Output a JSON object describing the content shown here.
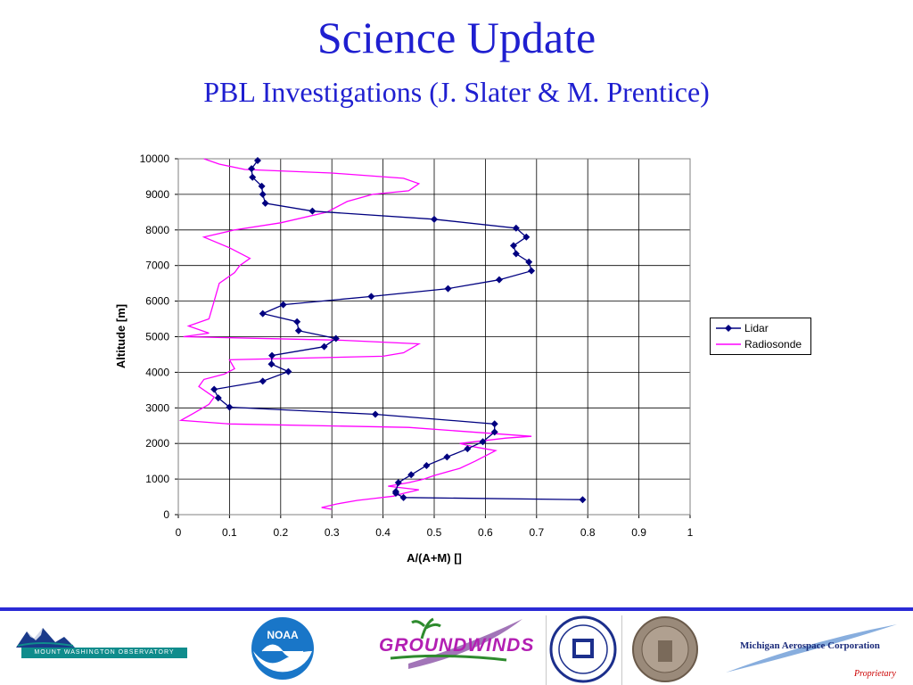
{
  "slide": {
    "title": "Science Update",
    "subtitle": "PBL Investigations (J. Slater & M. Prentice)"
  },
  "footer": {
    "mwo_text": "MOUNT WASHINGTON OBSERVATORY",
    "noaa_text": "NOAA",
    "groundwinds_text": "GROUNDWINDS",
    "mac_text": "Michigan Aerospace Corporation",
    "proprietary_text": "Proprietary",
    "accent_color": "#2b2bd6"
  },
  "chart_data": {
    "type": "line",
    "title": "",
    "xlabel": "A/(A+M) []",
    "ylabel": "Altitude [m]",
    "xlim": [
      0,
      1
    ],
    "ylim": [
      0,
      10000
    ],
    "x_ticks": [
      "0",
      "0.1",
      "0.2",
      "0.3",
      "0.4",
      "0.5",
      "0.6",
      "0.7",
      "0.8",
      "0.9",
      "1"
    ],
    "y_ticks": [
      "0",
      "1000",
      "2000",
      "3000",
      "4000",
      "5000",
      "6000",
      "7000",
      "8000",
      "9000",
      "10000"
    ],
    "grid": true,
    "legend_position": "right",
    "series": [
      {
        "name": "Lidar",
        "color": "#000080",
        "marker": "diamond",
        "points": [
          [
            0.79,
            420
          ],
          [
            0.44,
            480
          ],
          [
            0.425,
            600
          ],
          [
            0.425,
            650
          ],
          [
            0.43,
            900
          ],
          [
            0.455,
            1120
          ],
          [
            0.485,
            1380
          ],
          [
            0.525,
            1620
          ],
          [
            0.565,
            1850
          ],
          [
            0.595,
            2050
          ],
          [
            0.618,
            2320
          ],
          [
            0.618,
            2550
          ],
          [
            0.385,
            2820
          ],
          [
            0.1,
            3020
          ],
          [
            0.078,
            3280
          ],
          [
            0.07,
            3520
          ],
          [
            0.165,
            3750
          ],
          [
            0.215,
            4020
          ],
          [
            0.182,
            4230
          ],
          [
            0.183,
            4470
          ],
          [
            0.285,
            4720
          ],
          [
            0.308,
            4950
          ],
          [
            0.235,
            5170
          ],
          [
            0.232,
            5420
          ],
          [
            0.165,
            5650
          ],
          [
            0.205,
            5900
          ],
          [
            0.377,
            6130
          ],
          [
            0.527,
            6350
          ],
          [
            0.627,
            6600
          ],
          [
            0.69,
            6850
          ],
          [
            0.685,
            7100
          ],
          [
            0.66,
            7330
          ],
          [
            0.655,
            7560
          ],
          [
            0.68,
            7800
          ],
          [
            0.66,
            8050
          ],
          [
            0.5,
            8300
          ],
          [
            0.262,
            8530
          ],
          [
            0.17,
            8750
          ],
          [
            0.165,
            9000
          ],
          [
            0.163,
            9230
          ],
          [
            0.145,
            9480
          ],
          [
            0.143,
            9720
          ],
          [
            0.155,
            9950
          ]
        ]
      },
      {
        "name": "Radiosonde",
        "color": "#ff00ff",
        "points": [
          [
            0.3,
            150
          ],
          [
            0.28,
            200
          ],
          [
            0.31,
            300
          ],
          [
            0.35,
            400
          ],
          [
            0.38,
            450
          ],
          [
            0.42,
            520
          ],
          [
            0.44,
            600
          ],
          [
            0.47,
            700
          ],
          [
            0.41,
            800
          ],
          [
            0.45,
            900
          ],
          [
            0.48,
            1000
          ],
          [
            0.5,
            1100
          ],
          [
            0.55,
            1300
          ],
          [
            0.58,
            1500
          ],
          [
            0.62,
            1800
          ],
          [
            0.58,
            1900
          ],
          [
            0.55,
            2000
          ],
          [
            0.64,
            2150
          ],
          [
            0.69,
            2200
          ],
          [
            0.45,
            2450
          ],
          [
            0.1,
            2550
          ],
          [
            0.005,
            2650
          ],
          [
            0.03,
            2850
          ],
          [
            0.06,
            3100
          ],
          [
            0.07,
            3300
          ],
          [
            0.04,
            3600
          ],
          [
            0.05,
            3800
          ],
          [
            0.09,
            3950
          ],
          [
            0.11,
            4100
          ],
          [
            0.1,
            4350
          ],
          [
            0.4,
            4450
          ],
          [
            0.44,
            4550
          ],
          [
            0.47,
            4800
          ],
          [
            0.32,
            4900
          ],
          [
            0.01,
            5000
          ],
          [
            0.06,
            5100
          ],
          [
            0.02,
            5300
          ],
          [
            0.06,
            5500
          ],
          [
            0.07,
            6000
          ],
          [
            0.08,
            6500
          ],
          [
            0.11,
            6800
          ],
          [
            0.12,
            7000
          ],
          [
            0.14,
            7200
          ],
          [
            0.1,
            7500
          ],
          [
            0.05,
            7800
          ],
          [
            0.11,
            8000
          ],
          [
            0.2,
            8200
          ],
          [
            0.29,
            8500
          ],
          [
            0.33,
            8800
          ],
          [
            0.38,
            9000
          ],
          [
            0.45,
            9100
          ],
          [
            0.47,
            9300
          ],
          [
            0.44,
            9450
          ],
          [
            0.3,
            9600
          ],
          [
            0.13,
            9700
          ],
          [
            0.08,
            9850
          ],
          [
            0.05,
            10000
          ]
        ]
      }
    ]
  }
}
